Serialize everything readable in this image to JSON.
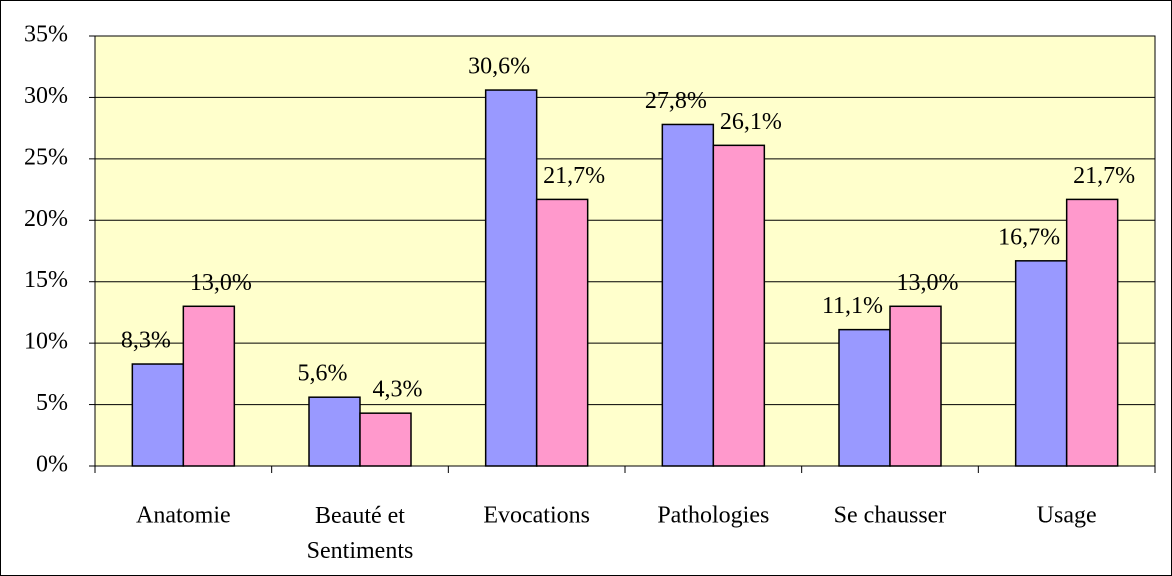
{
  "chart_data": {
    "type": "bar",
    "categories": [
      "Anatomie",
      "Beauté et Sentiments",
      "Evocations",
      "Pathologies",
      "Se chausser",
      "Usage"
    ],
    "series": [
      {
        "color": "#9999ff",
        "values": [
          8.3,
          5.6,
          30.6,
          27.8,
          11.1,
          16.7
        ],
        "value_labels": [
          "8,3%",
          "5,6%",
          "30,6%",
          "27,8%",
          "11,1%",
          "16,7%"
        ]
      },
      {
        "color": "#ff99cc",
        "values": [
          13.0,
          4.3,
          21.7,
          26.1,
          13.0,
          21.7
        ],
        "value_labels": [
          "13,0%",
          "4,3%",
          "21,7%",
          "26,1%",
          "13,0%",
          "21,7%"
        ]
      }
    ],
    "ylim": [
      0,
      35
    ],
    "yticks": [
      {
        "value": 0,
        "label": "0%"
      },
      {
        "value": 5,
        "label": "5%"
      },
      {
        "value": 10,
        "label": "10%"
      },
      {
        "value": 15,
        "label": "15%"
      },
      {
        "value": 20,
        "label": "20%"
      },
      {
        "value": 25,
        "label": "25%"
      },
      {
        "value": 30,
        "label": "30%"
      },
      {
        "value": 35,
        "label": "35%"
      }
    ],
    "grid": true,
    "background": "#ffffcc"
  }
}
